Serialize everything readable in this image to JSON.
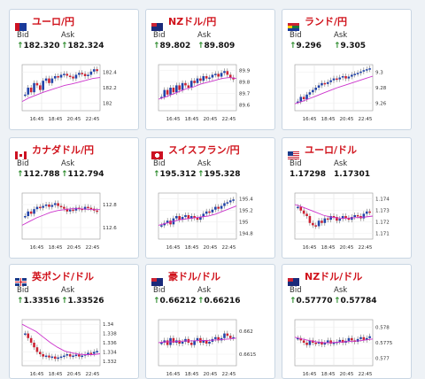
{
  "cards": [
    {
      "pair": "ユーロ/円",
      "flag": "eu",
      "bid_label": "Bid",
      "ask_label": "Ask",
      "bid": "182.320",
      "ask": "182.324",
      "bid_up": true,
      "ask_up": true,
      "chart": {
        "y_ticks": [
          "182.4",
          "182.2",
          "182"
        ],
        "x_ticks": [
          "16:45",
          "18:45",
          "20:45",
          "22:45"
        ],
        "candles": [
          0.35,
          0.5,
          0.4,
          0.6,
          0.55,
          0.45,
          0.65,
          0.7,
          0.6,
          0.7,
          0.75,
          0.72,
          0.78,
          0.8,
          0.76,
          0.74,
          0.7,
          0.78,
          0.82,
          0.8,
          0.75,
          0.78,
          0.85,
          0.9,
          0.86
        ],
        "ma": [
          0.2,
          0.28,
          0.34,
          0.4,
          0.45,
          0.5,
          0.55,
          0.58,
          0.62,
          0.66,
          0.7,
          0.72
        ]
      }
    },
    {
      "pair": "NZドル/円",
      "flag": "nz",
      "bid_label": "Bid",
      "ask_label": "Ask",
      "bid": "89.802",
      "ask": "89.809",
      "bid_up": true,
      "ask_up": true,
      "chart": {
        "y_ticks": [
          "89.9",
          "89.8",
          "89.7",
          "89.6"
        ],
        "x_ticks": [
          "16:45",
          "18:45",
          "20:45",
          "22:45"
        ],
        "candles": [
          0.3,
          0.45,
          0.35,
          0.5,
          0.4,
          0.55,
          0.45,
          0.6,
          0.55,
          0.5,
          0.65,
          0.6,
          0.7,
          0.65,
          0.75,
          0.7,
          0.72,
          0.78,
          0.8,
          0.74,
          0.82,
          0.86,
          0.78,
          0.72,
          0.68
        ],
        "ma": [
          0.25,
          0.3,
          0.36,
          0.42,
          0.48,
          0.52,
          0.58,
          0.62,
          0.66,
          0.7,
          0.72,
          0.7
        ]
      }
    },
    {
      "pair": "ランド/円",
      "flag": "za",
      "bid_label": "Bid",
      "ask_label": "Ask",
      "bid": "9.296",
      "ask": "9.305",
      "bid_up": true,
      "ask_up": true,
      "chart": {
        "y_ticks": [
          "9.3",
          "9.28",
          "9.26"
        ],
        "x_ticks": [
          "16:45",
          "18:45",
          "20:45",
          "22:45"
        ],
        "candles": [
          0.2,
          0.3,
          0.25,
          0.35,
          0.4,
          0.45,
          0.5,
          0.55,
          0.6,
          0.58,
          0.62,
          0.66,
          0.7,
          0.68,
          0.72,
          0.75,
          0.7,
          0.74,
          0.78,
          0.8,
          0.82,
          0.85,
          0.88,
          0.9,
          0.92
        ],
        "ma": [
          0.15,
          0.2,
          0.26,
          0.32,
          0.38,
          0.44,
          0.5,
          0.55,
          0.6,
          0.65,
          0.7,
          0.75
        ]
      }
    },
    {
      "pair": "カナダドル/円",
      "flag": "ca",
      "bid_label": "Bid",
      "ask_label": "Ask",
      "bid": "112.788",
      "ask": "112.794",
      "bid_up": true,
      "ask_up": true,
      "chart": {
        "y_ticks": [
          "112.8",
          "112.6"
        ],
        "x_ticks": [
          "16:45",
          "18:45",
          "20:45",
          "22:45"
        ],
        "candles": [
          0.5,
          0.6,
          0.55,
          0.65,
          0.7,
          0.68,
          0.72,
          0.75,
          0.7,
          0.74,
          0.78,
          0.72,
          0.7,
          0.66,
          0.6,
          0.64,
          0.62,
          0.68,
          0.66,
          0.64,
          0.7,
          0.68,
          0.66,
          0.62,
          0.6
        ],
        "ma": [
          0.3,
          0.38,
          0.46,
          0.52,
          0.58,
          0.62,
          0.64,
          0.66,
          0.66,
          0.65,
          0.64,
          0.64
        ]
      }
    },
    {
      "pair": "スイスフラン/円",
      "flag": "ch",
      "bid_label": "Bid",
      "ask_label": "Ask",
      "bid": "195.312",
      "ask": "195.328",
      "bid_up": true,
      "ask_up": true,
      "chart": {
        "y_ticks": [
          "195.4",
          "195.2",
          "195",
          "194.8"
        ],
        "x_ticks": [
          "16:45",
          "18:45",
          "20:45",
          "22:45"
        ],
        "candles": [
          0.3,
          0.35,
          0.4,
          0.32,
          0.45,
          0.5,
          0.42,
          0.48,
          0.52,
          0.44,
          0.5,
          0.46,
          0.42,
          0.48,
          0.55,
          0.6,
          0.58,
          0.64,
          0.7,
          0.66,
          0.72,
          0.78,
          0.8,
          0.84,
          0.86
        ],
        "ma": [
          0.3,
          0.34,
          0.38,
          0.42,
          0.44,
          0.46,
          0.48,
          0.5,
          0.54,
          0.6,
          0.66,
          0.72
        ]
      }
    },
    {
      "pair": "ユーロ/ドル",
      "flag": "us",
      "bid_label": "Bid",
      "ask_label": "Ask",
      "bid": "1.17298",
      "ask": "1.17301",
      "bid_up": false,
      "ask_up": false,
      "chart": {
        "y_ticks": [
          "1.174",
          "1.173",
          "1.172",
          "1.171"
        ],
        "x_ticks": [
          "16:45",
          "18:45",
          "20:45",
          "22:45"
        ],
        "candles": [
          0.7,
          0.62,
          0.55,
          0.5,
          0.35,
          0.3,
          0.28,
          0.4,
          0.35,
          0.45,
          0.42,
          0.5,
          0.48,
          0.4,
          0.44,
          0.5,
          0.46,
          0.42,
          0.48,
          0.52,
          0.5,
          0.45,
          0.55,
          0.6,
          0.58
        ],
        "ma": [
          0.75,
          0.7,
          0.64,
          0.58,
          0.52,
          0.48,
          0.46,
          0.45,
          0.46,
          0.47,
          0.48,
          0.5
        ]
      }
    },
    {
      "pair": "英ポンド/ドル",
      "flag": "gb",
      "bid_label": "Bid",
      "ask_label": "Ask",
      "bid": "1.33516",
      "ask": "1.33526",
      "bid_up": true,
      "ask_up": true,
      "chart": {
        "y_ticks": [
          "1.34",
          "1.338",
          "1.336",
          "1.334",
          "1.332"
        ],
        "x_ticks": [
          "16:45",
          "18:45",
          "20:45",
          "22:45"
        ],
        "candles": [
          0.7,
          0.6,
          0.5,
          0.4,
          0.3,
          0.25,
          0.2,
          0.22,
          0.18,
          0.2,
          0.15,
          0.18,
          0.2,
          0.22,
          0.25,
          0.2,
          0.22,
          0.24,
          0.2,
          0.22,
          0.25,
          0.28,
          0.26,
          0.3,
          0.32
        ],
        "ma": [
          0.9,
          0.82,
          0.74,
          0.62,
          0.5,
          0.4,
          0.32,
          0.28,
          0.25,
          0.24,
          0.24,
          0.26
        ]
      }
    },
    {
      "pair": "豪ドル/ドル",
      "flag": "au",
      "bid_label": "Bid",
      "ask_label": "Ask",
      "bid": "0.66212",
      "ask": "0.66216",
      "bid_up": true,
      "ask_up": true,
      "chart": {
        "y_ticks": [
          "0.662",
          "0.6615"
        ],
        "x_ticks": [
          "16:45",
          "18:45",
          "20:45",
          "22:45"
        ],
        "candles": [
          0.5,
          0.55,
          0.45,
          0.6,
          0.5,
          0.55,
          0.48,
          0.52,
          0.58,
          0.5,
          0.45,
          0.55,
          0.6,
          0.5,
          0.55,
          0.48,
          0.52,
          0.58,
          0.62,
          0.55,
          0.6,
          0.7,
          0.65,
          0.6,
          0.62
        ],
        "ma": [
          0.5,
          0.52,
          0.52,
          0.53,
          0.54,
          0.54,
          0.55,
          0.55,
          0.56,
          0.57,
          0.58,
          0.6
        ]
      }
    },
    {
      "pair": "NZドル/ドル",
      "flag": "nz",
      "bid_label": "Bid",
      "ask_label": "Ask",
      "bid": "0.57770",
      "ask": "0.57784",
      "bid_up": true,
      "ask_up": true,
      "chart": {
        "y_ticks": [
          "0.578",
          "0.5775",
          "0.577"
        ],
        "x_ticks": [
          "16:45",
          "18:45",
          "20:45",
          "22:45"
        ],
        "candles": [
          0.6,
          0.55,
          0.5,
          0.45,
          0.55,
          0.5,
          0.48,
          0.52,
          0.46,
          0.5,
          0.55,
          0.48,
          0.5,
          0.52,
          0.56,
          0.5,
          0.54,
          0.6,
          0.55,
          0.52,
          0.58,
          0.62,
          0.56,
          0.6,
          0.64
        ],
        "ma": [
          0.62,
          0.58,
          0.55,
          0.52,
          0.5,
          0.5,
          0.51,
          0.52,
          0.53,
          0.54,
          0.56,
          0.58
        ]
      }
    }
  ],
  "colors": {
    "title": "#d0121b",
    "up_candle": "#2244aa",
    "down_candle": "#cc2233",
    "ma": "#cc33cc",
    "ma2": "#3366cc",
    "arrow_up": "#2a8a2a"
  }
}
